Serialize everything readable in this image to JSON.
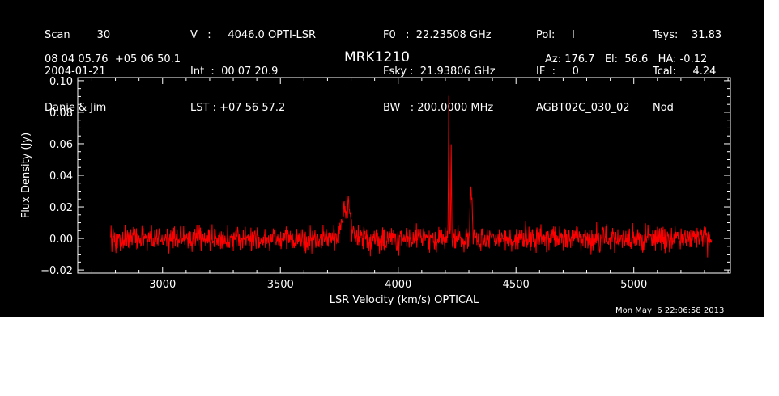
{
  "header": {
    "col1": [
      "Scan        30",
      "2004-01-21",
      "Danie & Jim"
    ],
    "col2": [
      "V   :     4046.0 OPTI-LSR",
      "Int  :  00 07 20.9",
      "LST : +07 56 57.2"
    ],
    "col3": [
      "F0   :  22.23508 GHz",
      "Fsky :  21.93806 GHz",
      "BW   : 200.0000 MHz"
    ],
    "col4": [
      "Pol:     I",
      "IF  :     0",
      "AGBT02C_030_02"
    ],
    "col5": [
      "Tsys:    31.83",
      "Tcal:     4.24",
      "Nod"
    ],
    "coords": "08 04 05.76  +05 06 50.1",
    "source": "MRK1210",
    "pointing": "Az: 176.7   El:  56.6   HA: -0.12"
  },
  "colors": {
    "background": "#000000",
    "foreground": "#ffffff",
    "series": "#ff0000"
  },
  "chart_data": {
    "type": "line",
    "xlabel": "LSR Velocity (km/s) OPTICAL",
    "ylabel": "Flux Density (Jy)",
    "xlim": [
      2640,
      5410
    ],
    "ylim": [
      -0.022,
      0.102
    ],
    "xticks": [
      3000,
      3500,
      4000,
      4500,
      5000
    ],
    "xtick_labels": [
      "3000",
      "3500",
      "4000",
      "4500",
      "5000"
    ],
    "yticks": [
      -0.02,
      0.0,
      0.02,
      0.04,
      0.06,
      0.08,
      0.1
    ],
    "ytick_labels": [
      "−0.02",
      "0.00",
      "0.02",
      "0.04",
      "0.06",
      "0.08",
      "0.10"
    ],
    "series": [
      {
        "x_range": [
          2780,
          5330
        ],
        "baseline": 0.0,
        "noise_rms": 0.004,
        "features": [
          {
            "x": 3780,
            "peak": 0.02
          },
          {
            "x": 4215,
            "peak": 0.09
          },
          {
            "x": 4225,
            "peak": 0.058
          },
          {
            "x": 4310,
            "peak": 0.03
          }
        ]
      }
    ],
    "grid": false
  },
  "timestamp": "Mon May  6 22:06:58 2013"
}
